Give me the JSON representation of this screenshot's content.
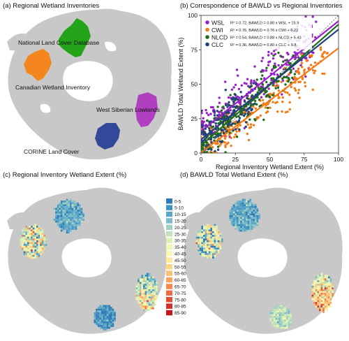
{
  "panels": {
    "a": {
      "title": "(a) Regional Wetland Inventories",
      "labels": {
        "nlcd": "National Land Cover Database",
        "cwi": "Canadian Wetland Inventory",
        "wsl": "West Siberian Lowlands",
        "clc": "CORINE Land Cover"
      }
    },
    "b": {
      "title": "(b) Correspondence of BAWLD vs Regional Inventories"
    },
    "c": {
      "title": "(c) Regional Inventory Wetland Extent (%)"
    },
    "d": {
      "title": "(d) BAWLD Total Wetland Extent (%)"
    }
  },
  "colors": {
    "land": "#c8c8c8",
    "nlcd": "#22a318",
    "cwi": "#f5861f",
    "wsl": "#b040c0",
    "clc": "#34489a"
  },
  "legend_classes": [
    {
      "label": "0-5",
      "color": "#2c7bb6"
    },
    {
      "label": "5-10",
      "color": "#3f93c2"
    },
    {
      "label": "10-15",
      "color": "#5aa7c9"
    },
    {
      "label": "15-20",
      "color": "#7dbcc8"
    },
    {
      "label": "20-25",
      "color": "#9fd0c2"
    },
    {
      "label": "25-30",
      "color": "#bfe3bb"
    },
    {
      "label": "30-35",
      "color": "#daf0b2"
    },
    {
      "label": "35-40",
      "color": "#eef8b0"
    },
    {
      "label": "40-45",
      "color": "#fbf7b0"
    },
    {
      "label": "45-50",
      "color": "#fee99a"
    },
    {
      "label": "50-55",
      "color": "#fed585"
    },
    {
      "label": "55-60",
      "color": "#fdbf71"
    },
    {
      "label": "60-65",
      "color": "#fca35e"
    },
    {
      "label": "65-70",
      "color": "#f8874f"
    },
    {
      "label": "70-75",
      "color": "#ef6a41"
    },
    {
      "label": "75-80",
      "color": "#e14d33"
    },
    {
      "label": "80-85",
      "color": "#d32f27"
    },
    {
      "label": "85-90",
      "color": "#c4151c"
    }
  ],
  "chart_data": {
    "type": "scatter",
    "title": "(b) Correspondence of BAWLD vs Regional Inventories",
    "xlabel": "Regional Inventory Wetland Extent (%)",
    "ylabel": "BAWLD Total Wetland Extent (%)",
    "xlim": [
      0,
      100
    ],
    "ylim": [
      0,
      100
    ],
    "xticks": [
      0,
      25,
      50,
      75,
      100
    ],
    "yticks": [
      0,
      25,
      50,
      75,
      100
    ],
    "grid": false,
    "one_to_one_line": true,
    "legend_position": "top-left",
    "series": [
      {
        "name": "WSL",
        "color": "#9b1fc9",
        "r2": "R² = 0.72",
        "equation": "BAWLD = 0.80 x WSL + 15.9",
        "slope": 0.8,
        "intercept": 15.9,
        "x_range": [
          0,
          85
        ],
        "n": 260
      },
      {
        "name": "CWI",
        "color": "#f47a15",
        "r2": "R² = 0.76",
        "equation": "BAWLD = 0.76 x CWI + 0.22",
        "slope": 0.76,
        "intercept": 0.22,
        "x_range": [
          0,
          92
        ],
        "n": 240
      },
      {
        "name": "NLCD",
        "color": "#1a6e1a",
        "r2": "R² = 0.54",
        "equation": "BAWLD = 0.88 x NLCD + 5.43",
        "slope": 0.88,
        "intercept": 5.43,
        "x_range": [
          0,
          70
        ],
        "n": 220
      },
      {
        "name": "CLC",
        "color": "#22407a",
        "r2": "R² = 0.36",
        "equation": "BAWLD = 0.80 x CLC + 9.8",
        "slope": 0.8,
        "intercept": 9.8,
        "x_range": [
          0,
          40
        ],
        "n": 150
      }
    ]
  }
}
